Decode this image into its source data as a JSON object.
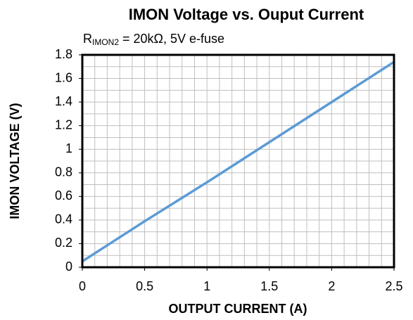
{
  "chart_data": {
    "type": "line",
    "title": "IMON Voltage vs. Ouput  Current",
    "subtitle": {
      "symbol": "R",
      "subscript": "IMON2",
      "text": " = 20kΩ, 5V e-fuse"
    },
    "x_label": "OUTPUT CURRENT (A)",
    "y_label": "IMON VOLTAGE (V)",
    "x": [
      0,
      0.5,
      1,
      1.5,
      2,
      2.5
    ],
    "series": [
      {
        "name": "IMON Voltage",
        "color": "#5b9bd5",
        "values": [
          0.05,
          0.39,
          0.72,
          1.06,
          1.4,
          1.74
        ]
      }
    ],
    "xlim": [
      0,
      2.5
    ],
    "ylim": [
      0,
      1.8
    ],
    "xticks": [
      0,
      0.5,
      1,
      1.5,
      2,
      2.5
    ],
    "yticks": [
      0,
      0.2,
      0.4,
      0.6,
      0.8,
      1,
      1.2,
      1.4,
      1.6,
      1.8
    ],
    "xgrid": [
      0.1,
      0.2,
      0.3,
      0.4,
      0.5,
      0.6,
      0.7,
      0.8,
      0.9,
      1,
      1.1,
      1.2,
      1.3,
      1.4,
      1.5,
      1.6,
      1.7,
      1.8,
      1.9,
      2,
      2.1,
      2.2,
      2.3,
      2.4
    ],
    "ygrid": [
      0.1,
      0.2,
      0.3,
      0.4,
      0.5,
      0.6,
      0.7,
      0.8,
      0.9,
      1,
      1.1,
      1.2,
      1.3,
      1.4,
      1.5,
      1.6,
      1.7
    ],
    "grid": true,
    "legend": false
  }
}
